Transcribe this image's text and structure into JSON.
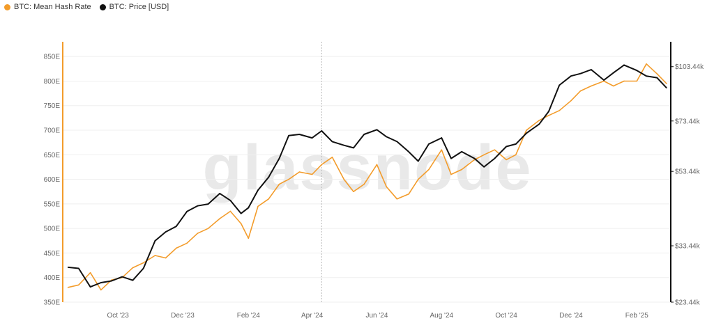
{
  "legend": [
    {
      "label": "BTC: Mean Hash Rate",
      "color": "#f39c2b"
    },
    {
      "label": "BTC: Price [USD]",
      "color": "#111111"
    }
  ],
  "watermark": "glassnode",
  "chart_data": {
    "type": "line",
    "x_ticks": [
      "Oct '23",
      "Dec '23",
      "Feb '24",
      "Apr '24",
      "Jun '24",
      "Aug '24",
      "Oct '24",
      "Dec '24",
      "Feb '25"
    ],
    "y_left_ticks": [
      "350E",
      "400E",
      "450E",
      "500E",
      "550E",
      "600E",
      "650E",
      "700E",
      "750E",
      "800E",
      "850E"
    ],
    "y_left_range": [
      350,
      880
    ],
    "y_right_ticks": [
      "$23.44k",
      "$33.44k",
      "$53.44k",
      "$73.44k",
      "$103.44k"
    ],
    "y_right_values": [
      23.44,
      33.44,
      53.44,
      73.44,
      103.44
    ],
    "y_right_scale": "log",
    "series": [
      {
        "name": "BTC: Mean Hash Rate",
        "axis": "left",
        "color": "#f39c2b",
        "x": [
          "2023-08-15",
          "2023-08-25",
          "2023-09-05",
          "2023-09-15",
          "2023-09-25",
          "2023-10-05",
          "2023-10-15",
          "2023-10-25",
          "2023-11-05",
          "2023-11-15",
          "2023-11-25",
          "2023-12-05",
          "2023-12-15",
          "2023-12-25",
          "2024-01-05",
          "2024-01-15",
          "2024-01-25",
          "2024-02-01",
          "2024-02-10",
          "2024-02-20",
          "2024-03-01",
          "2024-03-10",
          "2024-03-20",
          "2024-04-01",
          "2024-04-10",
          "2024-04-20",
          "2024-05-01",
          "2024-05-10",
          "2024-05-20",
          "2024-06-01",
          "2024-06-10",
          "2024-06-20",
          "2024-07-01",
          "2024-07-10",
          "2024-07-20",
          "2024-08-01",
          "2024-08-10",
          "2024-08-20",
          "2024-09-01",
          "2024-09-10",
          "2024-09-20",
          "2024-10-01",
          "2024-10-10",
          "2024-10-20",
          "2024-11-01",
          "2024-11-10",
          "2024-11-20",
          "2024-12-01",
          "2024-12-10",
          "2024-12-20",
          "2025-01-01",
          "2025-01-10",
          "2025-01-20",
          "2025-02-01",
          "2025-02-10",
          "2025-02-20",
          "2025-03-01"
        ],
        "values": [
          380,
          385,
          410,
          375,
          395,
          400,
          420,
          430,
          445,
          440,
          460,
          470,
          490,
          500,
          520,
          535,
          510,
          480,
          545,
          560,
          590,
          600,
          615,
          610,
          630,
          645,
          600,
          575,
          590,
          630,
          585,
          560,
          570,
          600,
          620,
          660,
          610,
          620,
          640,
          650,
          660,
          640,
          650,
          700,
          720,
          730,
          740,
          760,
          780,
          790,
          800,
          790,
          800,
          800,
          835,
          815,
          795
        ]
      },
      {
        "name": "BTC: Price [USD]",
        "axis": "right",
        "color": "#111111",
        "x": [
          "2023-08-15",
          "2023-08-25",
          "2023-09-05",
          "2023-09-15",
          "2023-09-25",
          "2023-10-05",
          "2023-10-15",
          "2023-10-25",
          "2023-11-05",
          "2023-11-15",
          "2023-11-25",
          "2023-12-05",
          "2023-12-15",
          "2023-12-25",
          "2024-01-05",
          "2024-01-15",
          "2024-01-25",
          "2024-02-01",
          "2024-02-10",
          "2024-02-20",
          "2024-03-01",
          "2024-03-10",
          "2024-03-20",
          "2024-04-01",
          "2024-04-10",
          "2024-04-20",
          "2024-05-01",
          "2024-05-10",
          "2024-05-20",
          "2024-06-01",
          "2024-06-10",
          "2024-06-20",
          "2024-07-01",
          "2024-07-10",
          "2024-07-20",
          "2024-08-01",
          "2024-08-10",
          "2024-08-20",
          "2024-09-01",
          "2024-09-10",
          "2024-09-20",
          "2024-10-01",
          "2024-10-10",
          "2024-10-20",
          "2024-11-01",
          "2024-11-10",
          "2024-11-20",
          "2024-12-01",
          "2024-12-10",
          "2024-12-20",
          "2025-01-01",
          "2025-01-10",
          "2025-01-20",
          "2025-02-01",
          "2025-02-10",
          "2025-02-20",
          "2025-03-01"
        ],
        "values": [
          29.2,
          29.0,
          25.8,
          26.5,
          26.8,
          27.5,
          26.9,
          29.0,
          34.5,
          36.5,
          37.8,
          41.5,
          43.0,
          43.5,
          46.5,
          44.5,
          41.0,
          42.5,
          47.5,
          51.5,
          58.0,
          67.0,
          67.5,
          66.0,
          69.0,
          64.5,
          63.0,
          62.0,
          67.5,
          69.5,
          66.5,
          64.5,
          60.5,
          57.0,
          63.5,
          66.0,
          58.0,
          60.5,
          58.0,
          55.0,
          58.0,
          62.5,
          63.5,
          68.0,
          72.0,
          78.0,
          92.0,
          97.5,
          99.0,
          101.5,
          95.0,
          99.5,
          104.5,
          101.0,
          97.5,
          96.5,
          90.5
        ]
      }
    ],
    "grid": true,
    "legend_position": "top-left"
  }
}
